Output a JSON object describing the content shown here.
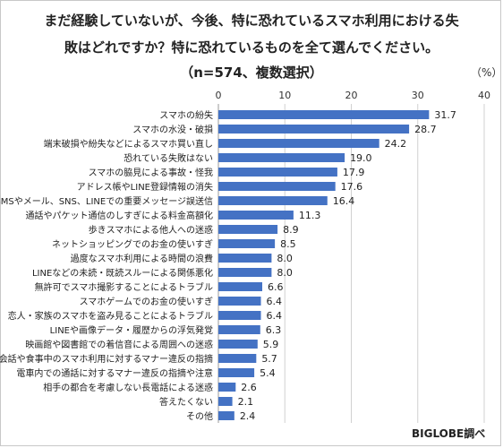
{
  "title": {
    "line1": "まだ経験していないが、今後、特に恐れているスマホ利用における失",
    "line2": "敗はどれですか？特に恐れているものを全て選んでください。",
    "line3": "（n=574、複数選択）"
  },
  "unit_label": "（%）",
  "source": "BIGLOBE調べ",
  "colors": {
    "bar": "#4472c4",
    "grid": "#d0d0d0",
    "axis": "#999999"
  },
  "chart_data": {
    "type": "bar",
    "orientation": "horizontal",
    "xlim": [
      0,
      40
    ],
    "x_ticks": [
      0,
      10,
      20,
      30,
      40
    ],
    "categories": [
      "スマホの紛失",
      "スマホの水没・破損",
      "端末破損や紛失などによるスマホ買い直し",
      "恐れている失敗はない",
      "スマホの脇見による事故・怪我",
      "アドレス帳やLINE登録情報の消失",
      "SMSやメール、SNS、LINEでの重要メッセージ誤送信",
      "通話やパケット通信のしすぎによる料金高額化",
      "歩きスマホによる他人への迷惑",
      "ネットショッピングでのお金の使いすぎ",
      "過度なスマホ利用による時間の浪費",
      "LINEなどの未読・既読スルーによる関係悪化",
      "無許可でスマホ撮影することによるトラブル",
      "スマホゲームでのお金の使いすぎ",
      "恋人・家族のスマホを盗み見ることによるトラブル",
      "LINEや画像データ・履歴からの浮気発覚",
      "映画館や図書館での着信音による周囲への迷惑",
      "会話や食事中のスマホ利用に対するマナー違反の指摘",
      "電車内での通話に対するマナー違反の指摘や注意",
      "相手の都合を考慮しない長電話による迷惑",
      "答えたくない",
      "その他"
    ],
    "values": [
      31.7,
      28.7,
      24.2,
      19.0,
      17.9,
      17.6,
      16.4,
      11.3,
      8.9,
      8.5,
      8.0,
      8.0,
      6.6,
      6.4,
      6.4,
      6.3,
      5.9,
      5.7,
      5.4,
      2.6,
      2.1,
      2.4
    ],
    "value_labels": [
      "31.7",
      "28.7",
      "24.2",
      "19.0",
      "17.9",
      "17.6",
      "16.4",
      "11.3",
      "8.9",
      "8.5",
      "8.0",
      "8.0",
      "6.6",
      "6.4",
      "6.4",
      "6.3",
      "5.9",
      "5.7",
      "5.4",
      "2.6",
      "2.1",
      "2.4"
    ]
  }
}
